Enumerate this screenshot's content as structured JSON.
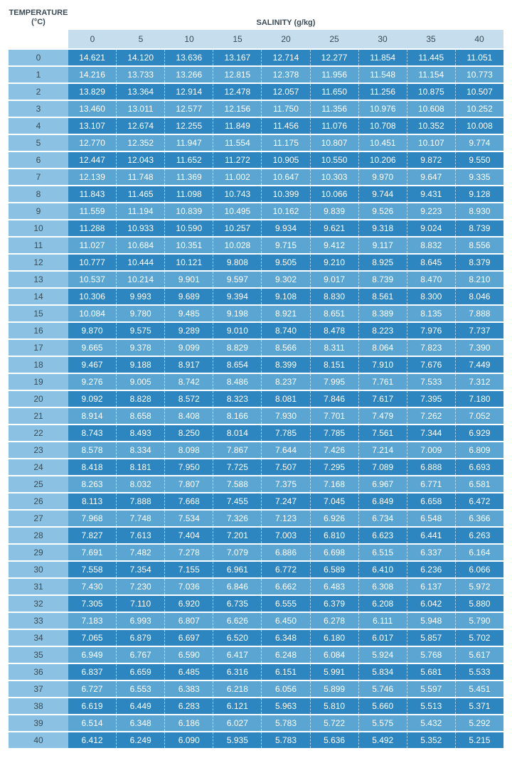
{
  "labels": {
    "temperature": "TEMPERATURE\n(°C)",
    "salinity": "SALINITY (g/kg)"
  },
  "colors": {
    "header_bg": "#c6ddee",
    "row_head_bg": "#8bc2e3",
    "row_band_a": "#5aa5d1",
    "row_band_b": "#2e86c1",
    "text_dark": "#3b4a54",
    "text_light": "#ffffff"
  },
  "salinity_columns": [
    "0",
    "5",
    "10",
    "15",
    "20",
    "25",
    "30",
    "35",
    "40"
  ],
  "rows": [
    {
      "t": "0",
      "v": [
        "14.621",
        "14.120",
        "13.636",
        "13.167",
        "12.714",
        "12.277",
        "11.854",
        "11.445",
        "11.051"
      ]
    },
    {
      "t": "1",
      "v": [
        "14.216",
        "13.733",
        "13.266",
        "12.815",
        "12.378",
        "11.956",
        "11.548",
        "11.154",
        "10.773"
      ]
    },
    {
      "t": "2",
      "v": [
        "13.829",
        "13.364",
        "12.914",
        "12.478",
        "12.057",
        "11.650",
        "11.256",
        "10.875",
        "10.507"
      ]
    },
    {
      "t": "3",
      "v": [
        "13.460",
        "13.011",
        "12.577",
        "12.156",
        "11.750",
        "11.356",
        "10.976",
        "10.608",
        "10.252"
      ]
    },
    {
      "t": "4",
      "v": [
        "13.107",
        "12.674",
        "12.255",
        "11.849",
        "11.456",
        "11.076",
        "10.708",
        "10.352",
        "10.008"
      ]
    },
    {
      "t": "5",
      "v": [
        "12.770",
        "12.352",
        "11.947",
        "11.554",
        "11.175",
        "10.807",
        "10.451",
        "10.107",
        "9.774"
      ]
    },
    {
      "t": "6",
      "v": [
        "12.447",
        "12.043",
        "11.652",
        "11.272",
        "10.905",
        "10.550",
        "10.206",
        "9.872",
        "9.550"
      ]
    },
    {
      "t": "7",
      "v": [
        "12.139",
        "11.748",
        "11.369",
        "11.002",
        "10.647",
        "10.303",
        "9.970",
        "9.647",
        "9.335"
      ]
    },
    {
      "t": "8",
      "v": [
        "11.843",
        "11.465",
        "11.098",
        "10.743",
        "10.399",
        "10.066",
        "9.744",
        "9.431",
        "9.128"
      ]
    },
    {
      "t": "9",
      "v": [
        "11.559",
        "11.194",
        "10.839",
        "10.495",
        "10.162",
        "9.839",
        "9.526",
        "9.223",
        "8.930"
      ]
    },
    {
      "t": "10",
      "v": [
        "11.288",
        "10.933",
        "10.590",
        "10.257",
        "9.934",
        "9.621",
        "9.318",
        "9.024",
        "8.739"
      ]
    },
    {
      "t": "11",
      "v": [
        "11.027",
        "10.684",
        "10.351",
        "10.028",
        "9.715",
        "9.412",
        "9.117",
        "8.832",
        "8.556"
      ]
    },
    {
      "t": "12",
      "v": [
        "10.777",
        "10.444",
        "10.121",
        "9.808",
        "9.505",
        "9.210",
        "8.925",
        "8.645",
        "8.379"
      ]
    },
    {
      "t": "13",
      "v": [
        "10.537",
        "10.214",
        "9.901",
        "9.597",
        "9.302",
        "9.017",
        "8.739",
        "8.470",
        "8.210"
      ]
    },
    {
      "t": "14",
      "v": [
        "10.306",
        "9.993",
        "9.689",
        "9.394",
        "9.108",
        "8.830",
        "8.561",
        "8.300",
        "8.046"
      ]
    },
    {
      "t": "15",
      "v": [
        "10.084",
        "9.780",
        "9.485",
        "9.198",
        "8.921",
        "8.651",
        "8.389",
        "8.135",
        "7.888"
      ]
    },
    {
      "t": "16",
      "v": [
        "9.870",
        "9.575",
        "9.289",
        "9.010",
        "8.740",
        "8.478",
        "8.223",
        "7.976",
        "7.737"
      ]
    },
    {
      "t": "17",
      "v": [
        "9.665",
        "9.378",
        "9.099",
        "8.829",
        "8.566",
        "8.311",
        "8.064",
        "7.823",
        "7.390"
      ]
    },
    {
      "t": "18",
      "v": [
        "9.467",
        "9.188",
        "8.917",
        "8.654",
        "8.399",
        "8.151",
        "7.910",
        "7.676",
        "7.449"
      ]
    },
    {
      "t": "19",
      "v": [
        "9.276",
        "9.005",
        "8.742",
        "8.486",
        "8.237",
        "7.995",
        "7.761",
        "7.533",
        "7.312"
      ]
    },
    {
      "t": "20",
      "v": [
        "9.092",
        "8.828",
        "8.572",
        "8.323",
        "8.081",
        "7.846",
        "7.617",
        "7.395",
        "7.180"
      ]
    },
    {
      "t": "21",
      "v": [
        "8.914",
        "8.658",
        "8.408",
        "8.166",
        "7.930",
        "7.701",
        "7.479",
        "7.262",
        "7.052"
      ]
    },
    {
      "t": "22",
      "v": [
        "8.743",
        "8.493",
        "8.250",
        "8.014",
        "7.785",
        "7.785",
        "7.561",
        "7.344",
        "6.929"
      ]
    },
    {
      "t": "23",
      "v": [
        "8.578",
        "8.334",
        "8.098",
        "7.867",
        "7.644",
        "7.426",
        "7.214",
        "7.009",
        "6.809"
      ]
    },
    {
      "t": "24",
      "v": [
        "8.418",
        "8.181",
        "7.950",
        "7.725",
        "7.507",
        "7.295",
        "7.089",
        "6.888",
        "6.693"
      ]
    },
    {
      "t": "25",
      "v": [
        "8.263",
        "8.032",
        "7.807",
        "7.588",
        "7.375",
        "7.168",
        "6.967",
        "6.771",
        "6.581"
      ]
    },
    {
      "t": "26",
      "v": [
        "8.113",
        "7.888",
        "7.668",
        "7.455",
        "7.247",
        "7.045",
        "6.849",
        "6.658",
        "6.472"
      ]
    },
    {
      "t": "27",
      "v": [
        "7.968",
        "7.748",
        "7.534",
        "7.326",
        "7.123",
        "6.926",
        "6.734",
        "6.548",
        "6.366"
      ]
    },
    {
      "t": "28",
      "v": [
        "7.827",
        "7.613",
        "7.404",
        "7.201",
        "7.003",
        "6.810",
        "6.623",
        "6.441",
        "6.263"
      ]
    },
    {
      "t": "29",
      "v": [
        "7.691",
        "7.482",
        "7.278",
        "7.079",
        "6.886",
        "6.698",
        "6.515",
        "6.337",
        "6.164"
      ]
    },
    {
      "t": "30",
      "v": [
        "7.558",
        "7.354",
        "7.155",
        "6.961",
        "6.772",
        "6.589",
        "6.410",
        "6.236",
        "6.066"
      ]
    },
    {
      "t": "31",
      "v": [
        "7.430",
        "7.230",
        "7.036",
        "6.846",
        "6.662",
        "6.483",
        "6.308",
        "6.137",
        "5.972"
      ]
    },
    {
      "t": "32",
      "v": [
        "7.305",
        "7.110",
        "6.920",
        "6.735",
        "6.555",
        "6.379",
        "6.208",
        "6.042",
        "5.880"
      ]
    },
    {
      "t": "33",
      "v": [
        "7.183",
        "6.993",
        "6.807",
        "6.626",
        "6.450",
        "6.278",
        "6.111",
        "5.948",
        "5.790"
      ]
    },
    {
      "t": "34",
      "v": [
        "7.065",
        "6.879",
        "6.697",
        "6.520",
        "6.348",
        "6.180",
        "6.017",
        "5.857",
        "5.702"
      ]
    },
    {
      "t": "35",
      "v": [
        "6.949",
        "6.767",
        "6.590",
        "6.417",
        "6.248",
        "6.084",
        "5.924",
        "5.768",
        "5.617"
      ]
    },
    {
      "t": "36",
      "v": [
        "6.837",
        "6.659",
        "6.485",
        "6.316",
        "6.151",
        "5.991",
        "5.834",
        "5.681",
        "5.533"
      ]
    },
    {
      "t": "37",
      "v": [
        "6.727",
        "6.553",
        "6.383",
        "6.218",
        "6.056",
        "5.899",
        "5.746",
        "5.597",
        "5.451"
      ]
    },
    {
      "t": "38",
      "v": [
        "6.619",
        "6.449",
        "6.283",
        "6.121",
        "5.963",
        "5.810",
        "5.660",
        "5.513",
        "5.371"
      ]
    },
    {
      "t": "39",
      "v": [
        "6.514",
        "6.348",
        "6.186",
        "6.027",
        "5.783",
        "5.722",
        "5.575",
        "5.432",
        "5.292"
      ]
    },
    {
      "t": "40",
      "v": [
        "6.412",
        "6.249",
        "6.090",
        "5.935",
        "5.783",
        "5.636",
        "5.492",
        "5.352",
        "5.215"
      ]
    }
  ]
}
